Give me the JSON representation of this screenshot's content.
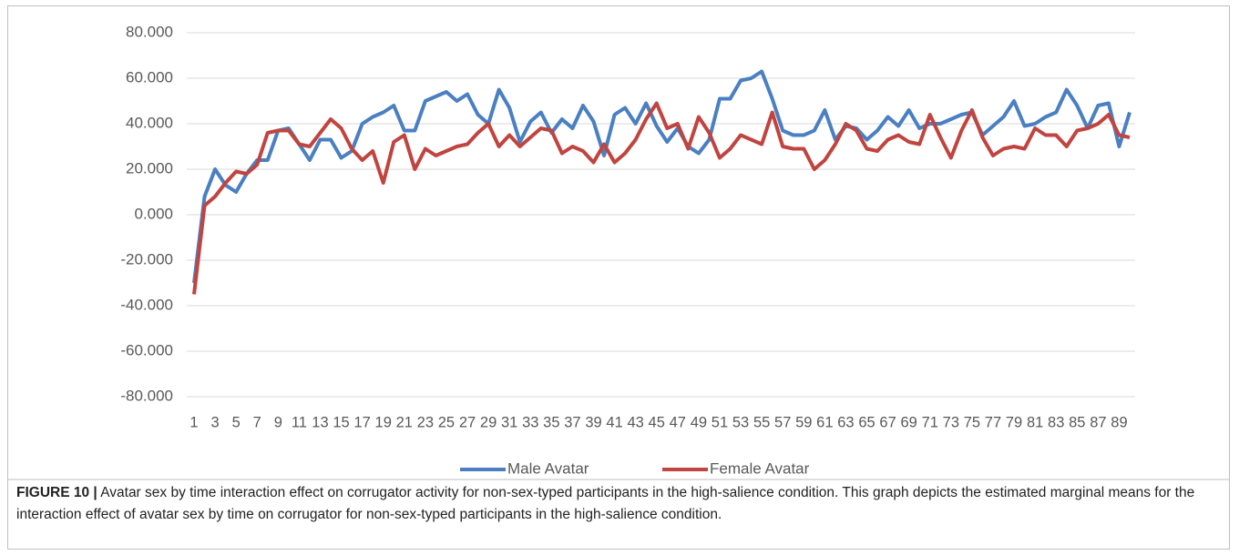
{
  "chart_data": {
    "type": "line",
    "categories": [
      "1",
      null,
      "3",
      null,
      "5",
      null,
      "7",
      null,
      "9",
      null,
      "11",
      null,
      "13",
      null,
      "15",
      null,
      "17",
      null,
      "19",
      null,
      "21",
      null,
      "23",
      null,
      "25",
      null,
      "27",
      null,
      "29",
      null,
      "31",
      null,
      "33",
      null,
      "35",
      null,
      "37",
      null,
      "39",
      null,
      "41",
      null,
      "43",
      null,
      "45",
      null,
      "47",
      null,
      "49",
      null,
      "51",
      null,
      "53",
      null,
      "55",
      null,
      "57",
      null,
      "59",
      null,
      "61",
      null,
      "63",
      null,
      "65",
      null,
      "67",
      null,
      "69",
      null,
      "71",
      null,
      "73",
      null,
      "75",
      null,
      "77",
      null,
      "79",
      null,
      "81",
      null,
      "83",
      null,
      "85",
      null,
      "87",
      null,
      "89",
      null
    ],
    "series": [
      {
        "name": "Male Avatar",
        "color": "#4a7fc1",
        "values": [
          -30,
          8,
          20,
          13,
          10,
          18,
          24,
          24,
          37,
          38,
          31,
          24,
          33,
          33,
          25,
          28,
          40,
          43,
          45,
          48,
          37,
          37,
          50,
          52,
          54,
          50,
          53,
          44,
          40,
          55,
          47,
          32,
          41,
          45,
          36,
          42,
          38,
          48,
          41,
          26,
          44,
          47,
          40,
          49,
          39,
          32,
          38,
          30,
          27,
          33,
          51,
          51,
          59,
          60,
          63,
          51,
          37,
          35,
          35,
          37,
          46,
          33,
          39,
          38,
          33,
          37,
          43,
          39,
          46,
          38,
          40,
          40,
          42,
          44,
          45,
          35,
          39,
          43,
          50,
          39,
          40,
          43,
          45,
          55,
          48,
          38,
          48,
          49,
          30,
          45
        ]
      },
      {
        "name": "Female Avatar",
        "color": "#c0443f",
        "values": [
          -35,
          4,
          8,
          14,
          19,
          18,
          22,
          36,
          37,
          37,
          31,
          30,
          36,
          42,
          38,
          29,
          24,
          28,
          14,
          32,
          35,
          20,
          29,
          26,
          28,
          30,
          31,
          36,
          40,
          30,
          35,
          30,
          34,
          38,
          37,
          27,
          30,
          28,
          23,
          31,
          23,
          27,
          33,
          42,
          49,
          38,
          40,
          29,
          43,
          36,
          25,
          29,
          35,
          33,
          31,
          45,
          30,
          29,
          29,
          20,
          24,
          31,
          40,
          37,
          29,
          28,
          33,
          35,
          32,
          31,
          44,
          34,
          25,
          37,
          46,
          34,
          26,
          29,
          30,
          29,
          38,
          35,
          35,
          30,
          37,
          38,
          40,
          44,
          35,
          34
        ]
      }
    ],
    "ylim": [
      -80,
      80
    ],
    "yticks": [
      {
        "value": -80,
        "label": "-80.000"
      },
      {
        "value": -60,
        "label": "-60.000"
      },
      {
        "value": -40,
        "label": "-40.000"
      },
      {
        "value": -20,
        "label": "-20.000"
      },
      {
        "value": 0,
        "label": "0.000"
      },
      {
        "value": 20,
        "label": "20.000"
      },
      {
        "value": 40,
        "label": "40.000"
      },
      {
        "value": 60,
        "label": "60.000"
      },
      {
        "value": 80,
        "label": "80.000"
      }
    ],
    "grid": true,
    "legend": "bottom"
  },
  "caption": {
    "label": "FIGURE 10 |",
    "text": "Avatar sex by time interaction effect on corrugator activity for non-sex-typed participants in the high-salience condition. This graph depicts the estimated marginal means for the interaction effect of avatar sex by time on corrugator for non-sex-typed participants in the high-salience condition."
  }
}
